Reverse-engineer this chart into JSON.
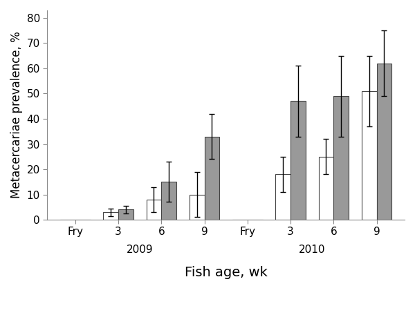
{
  "title": "",
  "xlabel": "Fish age, wk",
  "ylabel": "Metacercariae prevalence, %",
  "ylim": [
    0,
    83
  ],
  "yticks": [
    0,
    10,
    20,
    30,
    40,
    50,
    60,
    70,
    80
  ],
  "groups": [
    "Fry",
    "3",
    "6",
    "9",
    "Fry",
    "3",
    "6",
    "9"
  ],
  "year_2009_label": "2009",
  "year_2010_label": "2010",
  "intervention_values": [
    0,
    3,
    8,
    10,
    0,
    18,
    25,
    51
  ],
  "intervention_errors": [
    0,
    1.5,
    5,
    9,
    0,
    7,
    7,
    14
  ],
  "nonintervention_values": [
    0,
    4,
    15,
    33,
    0,
    47,
    49,
    62
  ],
  "nonintervention_errors": [
    0,
    1.5,
    8,
    9,
    0,
    14,
    16,
    13
  ],
  "bar_width": 0.35,
  "intervention_color": "#ffffff",
  "nonintervention_color": "#999999",
  "edge_color": "#444444",
  "background_color": "#ffffff",
  "ylabel_fontsize": 12,
  "xlabel_fontsize": 14,
  "tick_fontsize": 11,
  "year_label_fontsize": 11
}
